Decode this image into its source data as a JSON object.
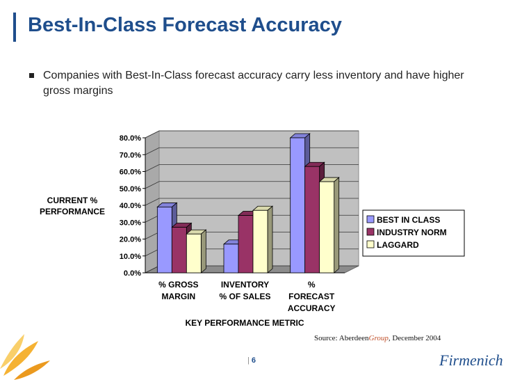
{
  "slide": {
    "title": "Best-In-Class Forecast Accuracy",
    "bullet": "Companies with Best-In-Class forecast accuracy carry less inventory and have higher gross margins",
    "source_prefix": "Source: ",
    "source_brand": "Aberdeen",
    "source_brand_accent": "Group",
    "source_suffix": ", December 2004",
    "page_sep": "|",
    "page_number": "6",
    "logo_text": "Firmenich"
  },
  "colors": {
    "title": "#1f4e8c",
    "best": "#9999ff",
    "industry": "#993366",
    "laggard": "#ffffcc",
    "plot_wall": "#c0c0c0"
  },
  "chart_data": {
    "type": "bar",
    "title": "",
    "ylabel_lines": [
      "CURRENT %",
      "PERFORMANCE"
    ],
    "xlabel": "KEY PERFORMANCE METRIC",
    "categories": [
      [
        "% GROSS",
        "MARGIN"
      ],
      [
        "INVENTORY",
        "% OF SALES"
      ],
      [
        "%",
        "FORECAST",
        "ACCURACY"
      ]
    ],
    "ylim": [
      0,
      80
    ],
    "yticks": [
      0,
      10,
      20,
      30,
      40,
      50,
      60,
      70,
      80
    ],
    "ytick_labels": [
      "0.0%",
      "10.0%",
      "20.0%",
      "30.0%",
      "40.0%",
      "50.0%",
      "60.0%",
      "70.0%",
      "80.0%"
    ],
    "series": [
      {
        "name": "BEST IN CLASS",
        "values": [
          39,
          17,
          80
        ],
        "color_key": "best"
      },
      {
        "name": "INDUSTRY NORM",
        "values": [
          27,
          34,
          63
        ],
        "color_key": "industry"
      },
      {
        "name": "LAGGARD",
        "values": [
          23,
          37,
          54
        ],
        "color_key": "laggard"
      }
    ],
    "legend_position": "right"
  }
}
